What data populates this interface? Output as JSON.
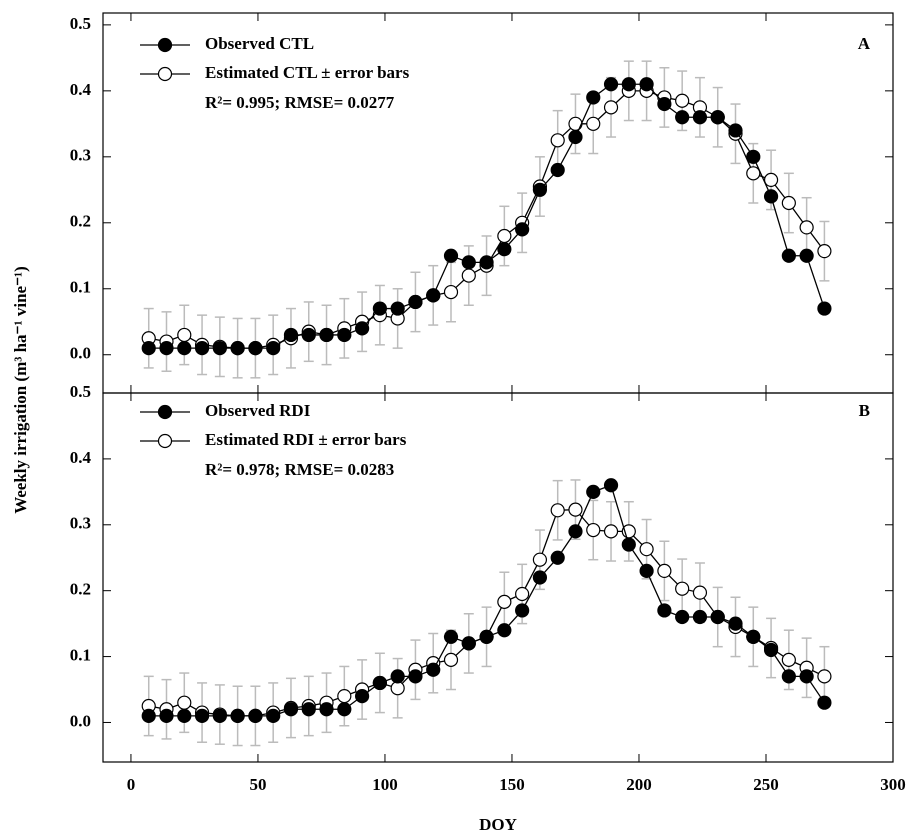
{
  "chart_data": [
    {
      "type": "line",
      "panel_label": "A",
      "annotation": "R²= 0.995; RMSE= 0.0277",
      "y_label": "Weekly irrigation (m³ ha⁻¹ vine⁻¹)",
      "x": [
        7,
        14,
        21,
        28,
        35,
        42,
        49,
        56,
        63,
        70,
        77,
        84,
        91,
        98,
        105,
        112,
        119,
        126,
        133,
        140,
        147,
        154,
        161,
        168,
        175,
        182,
        189,
        196,
        203,
        210,
        217,
        224,
        231,
        238,
        245,
        252,
        259,
        266,
        273
      ],
      "xlim": [
        -11,
        300
      ],
      "xticks": [
        0,
        50,
        100,
        150,
        200,
        250,
        300
      ],
      "ylim": [
        -0.058,
        0.518
      ],
      "yticks": [
        {
          "value": 0,
          "label": "0.0"
        },
        0.1,
        0.2,
        0.3,
        0.4,
        0.5
      ],
      "series": [
        {
          "name": "Estimated CTL ± error bars",
          "color": "#000000",
          "marker_fill": "#ffffff",
          "error": 0.045,
          "error_color": "#bbbbbb",
          "values": [
            0.025,
            0.02,
            0.03,
            0.015,
            0.012,
            0.01,
            0.01,
            0.015,
            0.025,
            0.035,
            0.03,
            0.04,
            0.05,
            0.06,
            0.055,
            0.08,
            0.09,
            0.095,
            0.12,
            0.135,
            0.18,
            0.2,
            0.255,
            0.325,
            0.35,
            0.35,
            0.375,
            0.4,
            0.4,
            0.39,
            0.385,
            0.375,
            0.36,
            0.335,
            0.275,
            0.265,
            0.23,
            0.193,
            0.157
          ]
        },
        {
          "name": "Observed CTL",
          "color": "#000000",
          "marker_fill": "#000000",
          "values": [
            0.01,
            0.01,
            0.01,
            0.01,
            0.01,
            0.01,
            0.01,
            0.01,
            0.03,
            0.03,
            0.03,
            0.03,
            0.04,
            0.07,
            0.07,
            0.08,
            0.09,
            0.15,
            0.14,
            0.14,
            0.16,
            0.19,
            0.25,
            0.28,
            0.33,
            0.39,
            0.41,
            0.41,
            0.41,
            0.38,
            0.36,
            0.36,
            0.36,
            0.34,
            0.3,
            0.24,
            0.15,
            0.15,
            0.07
          ]
        }
      ]
    },
    {
      "type": "line",
      "panel_label": "B",
      "annotation": "R²= 0.978; RMSE= 0.0283",
      "x_label": "DOY",
      "x": [
        7,
        14,
        21,
        28,
        35,
        42,
        49,
        56,
        63,
        70,
        77,
        84,
        91,
        98,
        105,
        112,
        119,
        126,
        133,
        140,
        147,
        154,
        161,
        168,
        175,
        182,
        189,
        196,
        203,
        210,
        217,
        224,
        231,
        238,
        245,
        252,
        259,
        266,
        273
      ],
      "xlim": [
        -11,
        300
      ],
      "xticks": [
        0,
        50,
        100,
        150,
        200,
        250,
        300
      ],
      "ylim": [
        -0.06,
        0.5
      ],
      "yticks": [
        {
          "value": 0,
          "label": "0.0"
        },
        0.1,
        0.2,
        0.3,
        0.4,
        0.5
      ],
      "series": [
        {
          "name": "Estimated RDI ± error bars",
          "color": "#000000",
          "marker_fill": "#ffffff",
          "error": 0.045,
          "error_color": "#bbbbbb",
          "values": [
            0.025,
            0.02,
            0.03,
            0.015,
            0.012,
            0.01,
            0.01,
            0.015,
            0.022,
            0.025,
            0.03,
            0.04,
            0.05,
            0.06,
            0.052,
            0.08,
            0.09,
            0.095,
            0.12,
            0.13,
            0.183,
            0.195,
            0.247,
            0.322,
            0.323,
            0.292,
            0.29,
            0.29,
            0.263,
            0.23,
            0.203,
            0.197,
            0.16,
            0.145,
            0.13,
            0.113,
            0.095,
            0.083,
            0.07
          ]
        },
        {
          "name": "Observed RDI",
          "color": "#000000",
          "marker_fill": "#000000",
          "values": [
            0.01,
            0.01,
            0.01,
            0.01,
            0.01,
            0.01,
            0.01,
            0.01,
            0.02,
            0.02,
            0.02,
            0.02,
            0.04,
            0.06,
            0.07,
            0.07,
            0.08,
            0.13,
            0.12,
            0.13,
            0.14,
            0.17,
            0.22,
            0.25,
            0.29,
            0.35,
            0.36,
            0.27,
            0.23,
            0.17,
            0.16,
            0.16,
            0.16,
            0.15,
            0.13,
            0.11,
            0.07,
            0.07,
            0.03
          ]
        }
      ]
    }
  ]
}
